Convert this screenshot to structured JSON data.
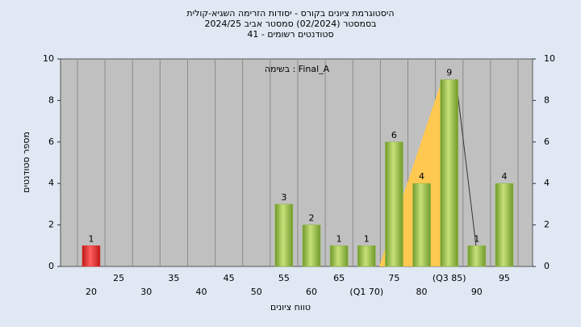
{
  "chart_data": {
    "type": "bar",
    "title": "היסטוגרמת ציונים בקורס - יסודות הזרימה השגיא-קולית",
    "subtitle": "בסמסטר  (02/2024)  סמסטר אביב 2024/25",
    "subtitle2": "סטודנטים רשומים - 41",
    "annotation": "בשימה : Final_A",
    "x_label": "טווח ציונים",
    "y_label": "מספר סטודנטים",
    "categories": [
      "20",
      "25",
      "30",
      "35",
      "40",
      "45",
      "50",
      "55",
      "60",
      "65",
      "(Q1 70)",
      "75",
      "80",
      "(Q3 85)",
      "90",
      "95"
    ],
    "values": [
      1,
      0,
      0,
      0,
      0,
      0,
      0,
      3,
      2,
      1,
      1,
      6,
      4,
      9,
      1,
      4
    ],
    "colors": [
      "#e03030",
      "#8fb840",
      "#8fb840",
      "#8fb840",
      "#8fb840",
      "#8fb840",
      "#8fb840",
      "#8fb840",
      "#8fb840",
      "#8fb840",
      "#8fb840",
      "#8fb840",
      "#8fb840",
      "#8fb840",
      "#8fb840",
      "#8fb840"
    ],
    "ylim": [
      0,
      10
    ],
    "yticks": [
      0,
      2,
      4,
      6,
      8,
      10
    ],
    "y2lim": [
      0,
      10
    ],
    "y2ticks": [
      0,
      2,
      4,
      6,
      8,
      10
    ]
  }
}
